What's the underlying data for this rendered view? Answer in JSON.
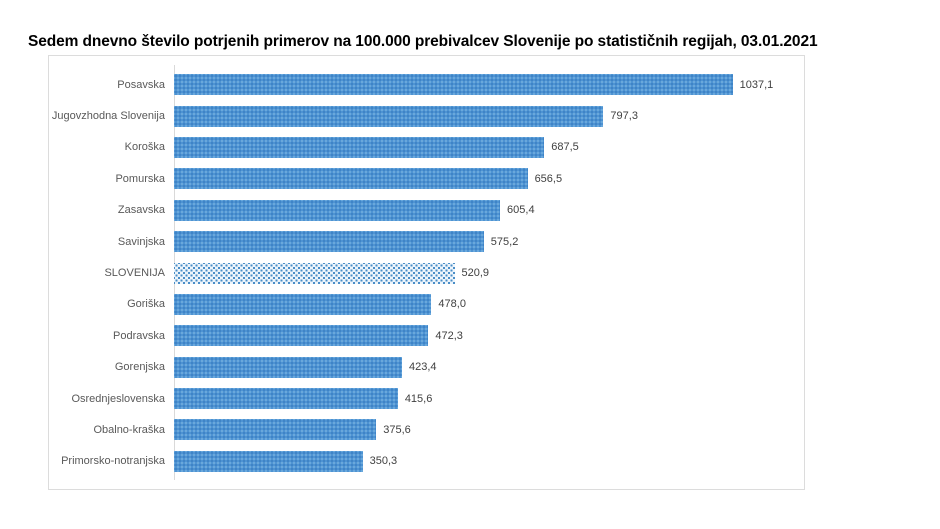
{
  "title": "Sedem dnevno število potrjenih primerov na 100.000 prebivalcev Slovenije po statističnih regijah, 03.01.2021",
  "colors": {
    "bar": "#4e93d3",
    "highlight_bar_background": "#eef5fb",
    "highlight_bar_dot": "#478cc6",
    "border": "#dcdcdc",
    "axis_line": "#d9d9d9",
    "category_label": "#595959",
    "value_label": "#404040",
    "title_text": "#000000"
  },
  "chart_data": {
    "type": "bar",
    "orientation": "horizontal",
    "title": "Sedem dnevno število potrjenih primerov na 100.000 prebivalcev Slovenije po statističnih regijah, 03.01.2021",
    "categories": [
      "Posavska",
      "Jugovzhodna Slovenija",
      "Koroška",
      "Pomurska",
      "Zasavska",
      "Savinjska",
      "SLOVENIJA",
      "Goriška",
      "Podravska",
      "Gorenjska",
      "Osrednjeslovenska",
      "Obalno-kraška",
      "Primorsko-notranjska"
    ],
    "values": [
      1037.1,
      797.3,
      687.5,
      656.5,
      605.4,
      575.2,
      520.9,
      478.0,
      472.3,
      423.4,
      415.6,
      375.6,
      350.3
    ],
    "value_labels": [
      "1037,1",
      "797,3",
      "687,5",
      "656,5",
      "605,4",
      "575,2",
      "520,9",
      "478,0",
      "472,3",
      "423,4",
      "415,6",
      "375,6",
      "350,3"
    ],
    "highlight_category": "SLOVENIJA",
    "xlabel": "",
    "ylabel": "",
    "xlim": [
      0,
      1166
    ],
    "grid": false,
    "legend": false,
    "data_labels_position": "outside-end"
  }
}
